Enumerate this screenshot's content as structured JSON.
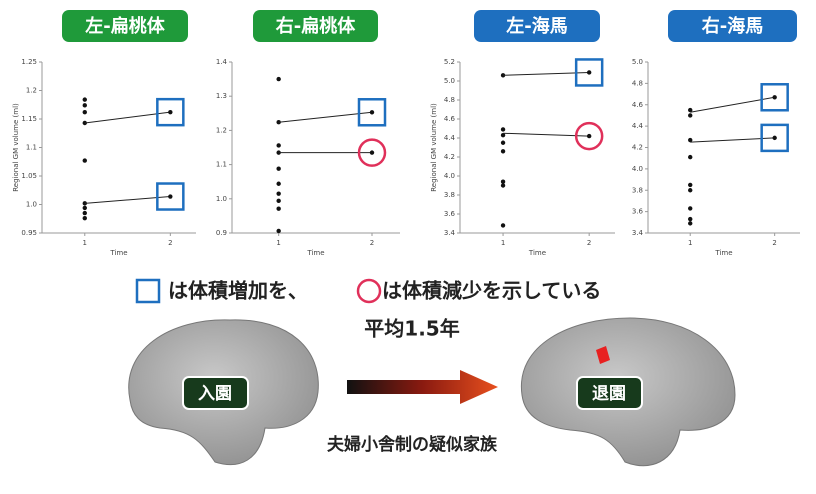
{
  "chart_data": [
    {
      "type": "scatter",
      "title": "左-扁桃体",
      "title_color": "#1f9a3a",
      "ylabel": "Regional GM volume (ml)",
      "xlabel": "Time",
      "xlim": [
        0.5,
        2.3
      ],
      "xticks": [
        1,
        2
      ],
      "ylim": [
        0.95,
        1.25
      ],
      "yticks": [
        0.95,
        {
          "value": 1,
          "label": "1.0"
        },
        1.05,
        1.1,
        1.15,
        1.2,
        1.25
      ],
      "x": [
        1,
        1,
        1,
        1,
        1,
        1,
        1,
        1,
        1
      ],
      "values": [
        1.184,
        1.174,
        1.162,
        1.143,
        1.077,
        1.002,
        0.994,
        0.985,
        0.976
      ],
      "lines": [
        {
          "x": [
            1,
            2
          ],
          "values": [
            1.143,
            1.162
          ],
          "marker": "square",
          "color": "#1e6fbf"
        },
        {
          "x": [
            1,
            2
          ],
          "values": [
            1.002,
            1.014
          ],
          "marker": "square",
          "color": "#1e6fbf"
        }
      ]
    },
    {
      "type": "scatter",
      "title": "右-扁桃体",
      "title_color": "#1f9a3a",
      "xlabel": "Time",
      "xlim": [
        0.5,
        2.3
      ],
      "xticks": [
        1,
        2
      ],
      "ylim": [
        0.9,
        1.4
      ],
      "yticks": [
        0.9,
        {
          "value": 1,
          "label": "1.0"
        },
        1.1,
        1.2,
        1.3,
        1.4
      ],
      "x": [
        1,
        1,
        1,
        1,
        1,
        1,
        1,
        1,
        1,
        1
      ],
      "values": [
        1.35,
        1.224,
        1.156,
        1.135,
        1.088,
        1.044,
        1.015,
        0.994,
        0.971,
        0.906
      ],
      "lines": [
        {
          "x": [
            1,
            2
          ],
          "values": [
            1.224,
            1.253
          ],
          "marker": "square",
          "color": "#1e6fbf"
        },
        {
          "x": [
            1,
            2
          ],
          "values": [
            1.135,
            1.135
          ],
          "marker": "circle",
          "color": "#e0305a"
        }
      ]
    },
    {
      "type": "scatter",
      "title": "左-海馬",
      "title_color": "#1e6fbf",
      "ylabel": "Regional GM volume (ml)",
      "xlabel": "Time",
      "xlim": [
        0.5,
        2.3
      ],
      "xticks": [
        1,
        2
      ],
      "ylim": [
        3.4,
        5.2
      ],
      "yticks": [
        3.4,
        3.6,
        3.8,
        {
          "value": 4,
          "label": "4.0"
        },
        4.2,
        4.4,
        4.6,
        4.8,
        {
          "value": 5,
          "label": "5.0"
        },
        5.2
      ],
      "x": [
        1,
        1,
        1,
        1,
        1,
        1,
        1,
        1
      ],
      "values": [
        5.06,
        4.49,
        4.43,
        4.35,
        4.26,
        3.94,
        3.9,
        3.48
      ],
      "lines": [
        {
          "x": [
            1,
            2
          ],
          "values": [
            5.06,
            5.09
          ],
          "marker": "square",
          "color": "#1e6fbf"
        },
        {
          "x": [
            1,
            2
          ],
          "values": [
            4.45,
            4.42
          ],
          "marker": "circle",
          "color": "#e0305a"
        }
      ]
    },
    {
      "type": "scatter",
      "title": "右-海馬",
      "title_color": "#1e6fbf",
      "xlabel": "Time",
      "xlim": [
        0.5,
        2.3
      ],
      "xticks": [
        1,
        2
      ],
      "ylim": [
        3.4,
        5.0
      ],
      "yticks": [
        3.4,
        3.6,
        3.8,
        {
          "value": 4,
          "label": "4.0"
        },
        4.2,
        4.4,
        4.6,
        4.8,
        {
          "value": 5,
          "label": "5.0"
        }
      ],
      "x": [
        1,
        1,
        1,
        1,
        1,
        1,
        1,
        1,
        1
      ],
      "values": [
        4.55,
        4.5,
        4.27,
        4.11,
        3.85,
        3.8,
        3.63,
        3.53,
        3.49
      ],
      "lines": [
        {
          "x": [
            1,
            2
          ],
          "values": [
            4.53,
            4.67
          ],
          "marker": "square",
          "color": "#1e6fbf"
        },
        {
          "x": [
            1,
            2
          ],
          "values": [
            4.25,
            4.29
          ],
          "marker": "square",
          "color": "#1e6fbf"
        }
      ]
    }
  ],
  "slide": {
    "legend_increase": "は体積増加を、",
    "legend_decrease": "は体積減少を示している",
    "duration": "平均1.5年",
    "before": "入園",
    "after": "退園",
    "caption": "夫婦小舎制の疑似家族"
  }
}
